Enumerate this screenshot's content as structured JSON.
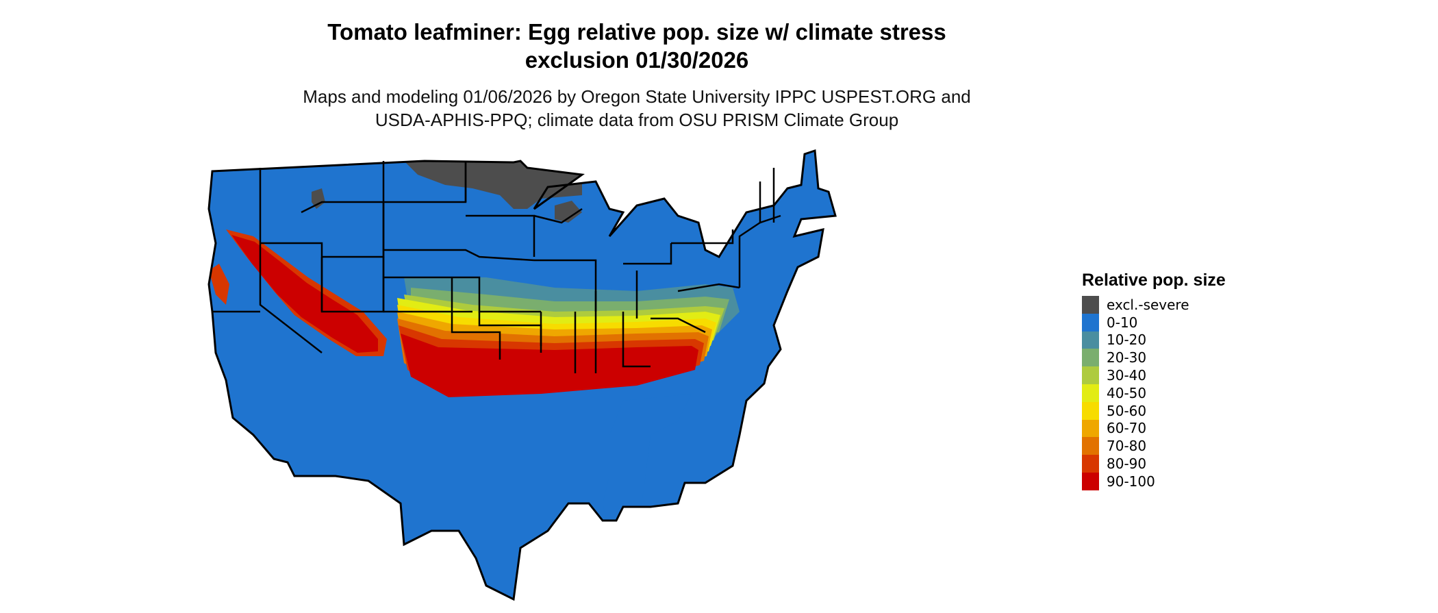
{
  "title": {
    "line1": "Tomato leafminer: Egg relative pop. size w/ climate stress",
    "line2": "exclusion 01/30/2026"
  },
  "subtitle": {
    "line1": "Maps and modeling 01/06/2026 by Oregon State University IPPC USPEST.ORG and",
    "line2": "USDA-APHIS-PPQ; climate data from OSU PRISM Climate Group"
  },
  "legend": {
    "title": "Relative pop. size",
    "items": [
      {
        "label": "excl.-severe",
        "color": "#4d4d4d"
      },
      {
        "label": "0-10",
        "color": "#1f74cf"
      },
      {
        "label": "10-20",
        "color": "#4a8ea0"
      },
      {
        "label": "20-30",
        "color": "#7aae6e"
      },
      {
        "label": "30-40",
        "color": "#aecb3e"
      },
      {
        "label": "40-50",
        "color": "#e2ec14"
      },
      {
        "label": "50-60",
        "color": "#f7dc00"
      },
      {
        "label": "60-70",
        "color": "#efa700"
      },
      {
        "label": "70-80",
        "color": "#e27200"
      },
      {
        "label": "80-90",
        "color": "#d83700"
      },
      {
        "label": "90-100",
        "color": "#cc0000"
      }
    ]
  },
  "map": {
    "region": "Contiguous United States",
    "background_class": "0-10",
    "boundary_color": "#000000"
  }
}
